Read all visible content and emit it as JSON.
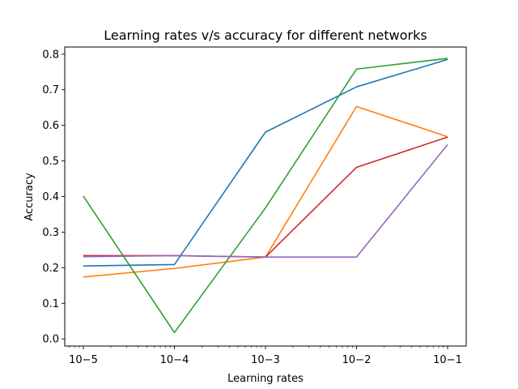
{
  "chart_data": {
    "type": "line",
    "title": "Learning rates v/s accuracy for different networks",
    "xlabel": "Learning rates",
    "ylabel": "Accuracy",
    "xscale": "log",
    "x": [
      1e-05,
      0.0001,
      0.001,
      0.01,
      0.1
    ],
    "x_tick_labels": [
      "10−5",
      "10−4",
      "10−3",
      "10−2",
      "10−1"
    ],
    "y_ticks": [
      0.0,
      0.1,
      0.2,
      0.3,
      0.4,
      0.5,
      0.6,
      0.7,
      0.8
    ],
    "y_tick_labels": [
      "0.0",
      "0.1",
      "0.2",
      "0.3",
      "0.4",
      "0.5",
      "0.6",
      "0.7",
      "0.8"
    ],
    "ylim": [
      -0.02,
      0.82
    ],
    "grid": false,
    "legend": false,
    "series": [
      {
        "color": "#1f77b4",
        "values": [
          0.205,
          0.209,
          0.581,
          0.708,
          0.785
        ]
      },
      {
        "color": "#ff7f0e",
        "values": [
          0.174,
          0.198,
          0.23,
          0.653,
          0.568
        ]
      },
      {
        "color": "#2ca02c",
        "values": [
          0.401,
          0.018,
          0.368,
          0.758,
          0.788
        ]
      },
      {
        "color": "#d62728",
        "values": [
          0.234,
          0.234,
          0.23,
          0.482,
          0.567
        ]
      },
      {
        "color": "#9467bd",
        "values": [
          0.231,
          0.234,
          0.23,
          0.23,
          0.546
        ]
      }
    ]
  }
}
